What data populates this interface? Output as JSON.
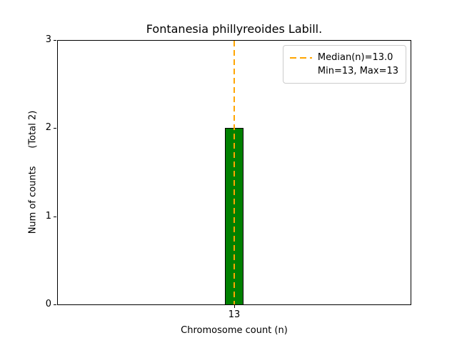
{
  "chart_data": {
    "type": "bar",
    "title": "Fontanesia phillyreoides Labill.",
    "xlabel": "Chromosome count (n)",
    "ylabel": "Num of counts      (Total 2)",
    "categories": [
      "13"
    ],
    "values": [
      2
    ],
    "total_counts": 2,
    "ylim": [
      0,
      3
    ],
    "yticks": [
      "0",
      "1",
      "2",
      "3"
    ],
    "grid": false,
    "bar_color": "#008000",
    "bar_edge_color": "#000000",
    "median": {
      "value": 13.0,
      "line_color": "#FFA500",
      "line_style": "dashed"
    },
    "min": 13,
    "max": 13,
    "legend": {
      "position": "upper right",
      "entries": [
        {
          "label": "Median(n)=13.0",
          "handle": "orange-dashed-line"
        },
        {
          "label": "Min=13, Max=13",
          "handle": "none"
        }
      ]
    }
  }
}
